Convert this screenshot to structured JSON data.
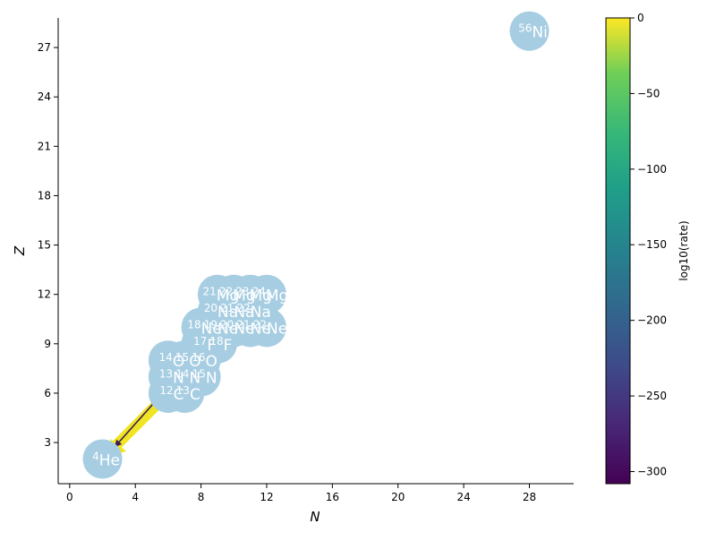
{
  "chart_data": {
    "type": "scatter",
    "xlabel": "N",
    "ylabel": "Z",
    "xlim": [
      -0.7,
      30.7
    ],
    "ylim": [
      0.5,
      28.8
    ],
    "x_ticks": [
      0,
      4,
      8,
      12,
      16,
      20,
      24,
      28
    ],
    "y_ticks": [
      3,
      6,
      9,
      12,
      15,
      18,
      21,
      24,
      27
    ],
    "nuclei": [
      {
        "mass": "4",
        "symbol": "He",
        "n": 2,
        "z": 2
      },
      {
        "mass": "12",
        "symbol": "C",
        "n": 6,
        "z": 6
      },
      {
        "mass": "13",
        "symbol": "C",
        "n": 7,
        "z": 6
      },
      {
        "mass": "13",
        "symbol": "N",
        "n": 6,
        "z": 7
      },
      {
        "mass": "14",
        "symbol": "N",
        "n": 7,
        "z": 7
      },
      {
        "mass": "15",
        "symbol": "N",
        "n": 8,
        "z": 7
      },
      {
        "mass": "14",
        "symbol": "O",
        "n": 6,
        "z": 8
      },
      {
        "mass": "15",
        "symbol": "O",
        "n": 7,
        "z": 8
      },
      {
        "mass": "16",
        "symbol": "O",
        "n": 8,
        "z": 8
      },
      {
        "mass": "17",
        "symbol": "F",
        "n": 8,
        "z": 9
      },
      {
        "mass": "18",
        "symbol": "F",
        "n": 9,
        "z": 9
      },
      {
        "mass": "18",
        "symbol": "Ne",
        "n": 8,
        "z": 10
      },
      {
        "mass": "19",
        "symbol": "Ne",
        "n": 9,
        "z": 10
      },
      {
        "mass": "20",
        "symbol": "Ne",
        "n": 10,
        "z": 10
      },
      {
        "mass": "21",
        "symbol": "Ne",
        "n": 11,
        "z": 10
      },
      {
        "mass": "22",
        "symbol": "Ne",
        "n": 12,
        "z": 10
      },
      {
        "mass": "20",
        "symbol": "Na",
        "n": 9,
        "z": 11
      },
      {
        "mass": "21",
        "symbol": "Na",
        "n": 10,
        "z": 11
      },
      {
        "mass": "22",
        "symbol": "Na",
        "n": 11,
        "z": 11
      },
      {
        "mass": "21",
        "symbol": "Mg",
        "n": 9,
        "z": 12
      },
      {
        "mass": "22",
        "symbol": "Mg",
        "n": 10,
        "z": 12
      },
      {
        "mass": "23",
        "symbol": "Mg",
        "n": 11,
        "z": 12
      },
      {
        "mass": "24",
        "symbol": "Mg",
        "n": 12,
        "z": 12
      },
      {
        "mass": "56",
        "symbol": "Ni",
        "n": 28,
        "z": 28
      }
    ],
    "links": [
      {
        "from": [
          6,
          6
        ],
        "to": [
          2.8,
          2.8
        ],
        "color": "#f0e522",
        "rate_log10": 0
      },
      {
        "from": [
          6.2,
          6.6
        ],
        "to": [
          2.8,
          2.8
        ],
        "color": "#3b1c5a",
        "rate_log10": -290
      }
    ],
    "node_color": "#a6cde2",
    "colorbar": {
      "label": "log10(rate)",
      "range": [
        -308,
        0
      ],
      "ticks": [
        0,
        -50,
        -100,
        -150,
        -200,
        -250,
        -300
      ],
      "colormap": "viridis"
    }
  }
}
